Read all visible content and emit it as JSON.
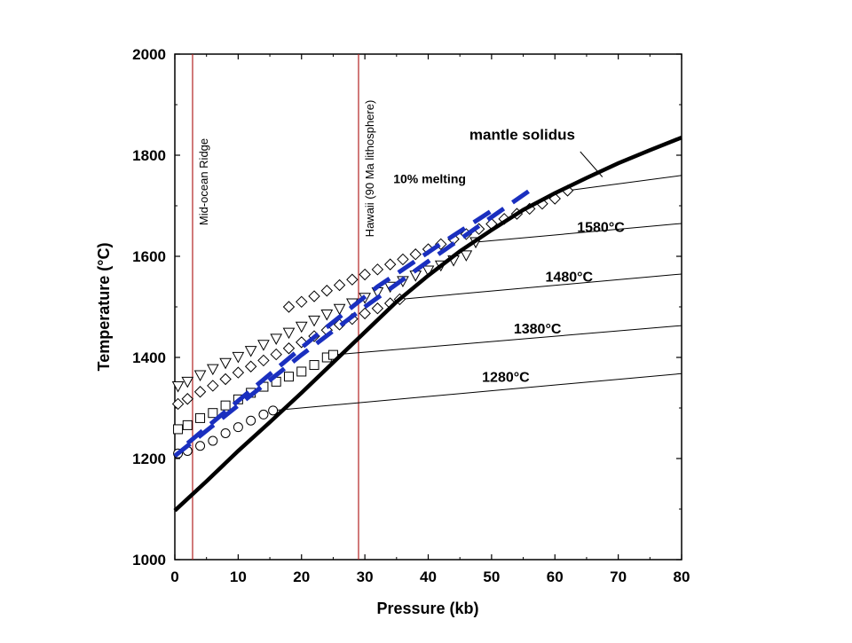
{
  "chart_data": {
    "type": "scatter",
    "xlabel": "Pressure (kb)",
    "ylabel": "Temperature (°C)",
    "xlim": [
      0,
      80
    ],
    "ylim": [
      1000,
      2000
    ],
    "xticks": [
      "0",
      "10",
      "20",
      "30",
      "40",
      "50",
      "60",
      "70",
      "80"
    ],
    "yticks": [
      "1000",
      "1200",
      "1400",
      "1600",
      "1800",
      "2000"
    ],
    "grid": false,
    "legend": "none",
    "solidus": {
      "label": "mantle solidus",
      "points": [
        [
          0,
          1097
        ],
        [
          5,
          1155
        ],
        [
          10,
          1215
        ],
        [
          15,
          1272
        ],
        [
          20,
          1330
        ],
        [
          25,
          1390
        ],
        [
          30,
          1450
        ],
        [
          35,
          1510
        ],
        [
          40,
          1562
        ],
        [
          45,
          1610
        ],
        [
          50,
          1652
        ],
        [
          55,
          1692
        ],
        [
          60,
          1725
        ],
        [
          65,
          1755
        ],
        [
          70,
          1784
        ],
        [
          75,
          1810
        ],
        [
          80,
          1835
        ]
      ]
    },
    "melting_curve": {
      "label": "10% melting",
      "color": "#1a2fbf",
      "points": [
        [
          0,
          1205
        ],
        [
          10,
          1305
        ],
        [
          20,
          1405
        ],
        [
          30,
          1500
        ],
        [
          40,
          1590
        ],
        [
          48,
          1660
        ],
        [
          56,
          1730
        ]
      ]
    },
    "melting_curve_2": {
      "points": [
        [
          2,
          1230
        ],
        [
          12,
          1335
        ],
        [
          22,
          1440
        ],
        [
          32,
          1540
        ],
        [
          42,
          1625
        ],
        [
          50,
          1690
        ]
      ]
    },
    "vertical_lines": [
      {
        "label": "Mid-ocean Ridge",
        "x": 2.8,
        "color": "#b22222"
      },
      {
        "label": "Hawaii (90 Ma lithosphere)",
        "x": 29,
        "color": "#b22222"
      }
    ],
    "adiabats": [
      {
        "label": "1280°C",
        "marker": "circle",
        "points": [
          [
            0.5,
            1210
          ],
          [
            2,
            1215
          ],
          [
            4,
            1225
          ],
          [
            6,
            1235
          ],
          [
            8,
            1250
          ],
          [
            10,
            1262
          ],
          [
            12,
            1275
          ],
          [
            14,
            1287
          ],
          [
            15.5,
            1295
          ]
        ],
        "leader": [
          [
            15.5,
            1295
          ],
          [
            80,
            1368
          ]
        ]
      },
      {
        "label": "1380°C",
        "marker": "square",
        "points": [
          [
            0.5,
            1258
          ],
          [
            2,
            1266
          ],
          [
            4,
            1280
          ],
          [
            6,
            1290
          ],
          [
            8,
            1305
          ],
          [
            10,
            1317
          ],
          [
            12,
            1330
          ],
          [
            14,
            1342
          ],
          [
            16,
            1352
          ],
          [
            18,
            1362
          ],
          [
            20,
            1372
          ],
          [
            22,
            1385
          ],
          [
            24,
            1400
          ],
          [
            25,
            1405
          ]
        ],
        "leader": [
          [
            25,
            1405
          ],
          [
            80,
            1463
          ]
        ]
      },
      {
        "label": "1480°C",
        "marker": "diamond",
        "points": [
          [
            0.5,
            1308
          ],
          [
            2,
            1318
          ],
          [
            4,
            1332
          ],
          [
            6,
            1344
          ],
          [
            8,
            1357
          ],
          [
            10,
            1370
          ],
          [
            12,
            1382
          ],
          [
            14,
            1394
          ],
          [
            16,
            1406
          ],
          [
            18,
            1418
          ],
          [
            20,
            1430
          ],
          [
            22,
            1442
          ],
          [
            24,
            1454
          ],
          [
            26,
            1465
          ],
          [
            28,
            1476
          ],
          [
            30,
            1487
          ],
          [
            32,
            1497
          ],
          [
            34,
            1507
          ],
          [
            35.5,
            1515
          ]
        ],
        "leader": [
          [
            35.5,
            1515
          ],
          [
            80,
            1565
          ]
        ]
      },
      {
        "label": "1580°C",
        "marker": "triangle-down",
        "points": [
          [
            0.5,
            1343
          ],
          [
            2,
            1352
          ],
          [
            4,
            1365
          ],
          [
            6,
            1377
          ],
          [
            8,
            1389
          ],
          [
            10,
            1401
          ],
          [
            12,
            1413
          ],
          [
            14,
            1425
          ],
          [
            16,
            1437
          ],
          [
            18,
            1449
          ],
          [
            20,
            1461
          ],
          [
            22,
            1473
          ],
          [
            24,
            1485
          ],
          [
            26,
            1496
          ],
          [
            28,
            1507
          ],
          [
            30,
            1518
          ],
          [
            32,
            1529
          ],
          [
            34,
            1540
          ],
          [
            36,
            1551
          ],
          [
            38,
            1562
          ],
          [
            40,
            1572
          ],
          [
            42,
            1582
          ],
          [
            44,
            1592
          ],
          [
            46,
            1602
          ],
          [
            47.5,
            1628
          ]
        ],
        "leader": [
          [
            47.5,
            1628
          ],
          [
            80,
            1665
          ]
        ]
      },
      {
        "label": "",
        "marker": "diamond",
        "points": [
          [
            18,
            1500
          ],
          [
            20,
            1510
          ],
          [
            22,
            1521
          ],
          [
            24,
            1532
          ],
          [
            26,
            1543
          ],
          [
            28,
            1554
          ],
          [
            30,
            1564
          ],
          [
            32,
            1574
          ],
          [
            34,
            1584
          ],
          [
            36,
            1594
          ],
          [
            38,
            1604
          ],
          [
            40,
            1614
          ],
          [
            42,
            1624
          ],
          [
            44,
            1634
          ],
          [
            46,
            1644
          ],
          [
            48,
            1654
          ],
          [
            50,
            1664
          ],
          [
            52,
            1674
          ],
          [
            54,
            1684
          ],
          [
            56,
            1694
          ],
          [
            58,
            1704
          ],
          [
            60,
            1714
          ],
          [
            62,
            1730
          ]
        ],
        "leader": [
          [
            62,
            1730
          ],
          [
            80,
            1760
          ]
        ]
      }
    ],
    "annotations": [
      {
        "text": "mantle solidus",
        "x": 46.5,
        "y": 1831
      },
      {
        "text": "10% melting",
        "x": 34.5,
        "y": 1745
      },
      {
        "text": "1580°C",
        "x": 63.5,
        "y": 1648
      },
      {
        "text": "1480°C",
        "x": 58.5,
        "y": 1550
      },
      {
        "text": "1380°C",
        "x": 53.5,
        "y": 1447
      },
      {
        "text": "1280°C",
        "x": 48.5,
        "y": 1352
      }
    ]
  }
}
